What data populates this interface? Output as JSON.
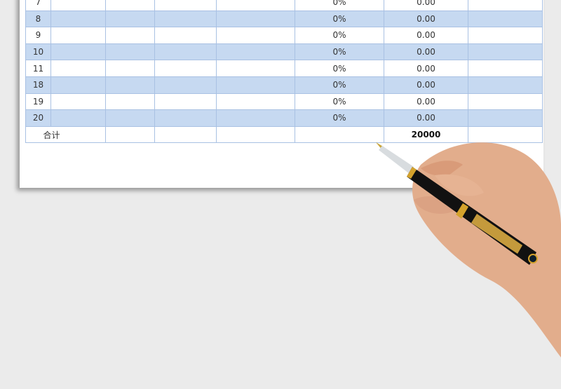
{
  "table": {
    "rows": [
      {
        "no": "7",
        "rate": "0%",
        "amount": "0.00"
      },
      {
        "no": "8",
        "rate": "0%",
        "amount": "0.00"
      },
      {
        "no": "9",
        "rate": "0%",
        "amount": "0.00"
      },
      {
        "no": "10",
        "rate": "0%",
        "amount": "0.00"
      },
      {
        "no": "11",
        "rate": "0%",
        "amount": "0.00"
      },
      {
        "no": "18",
        "rate": "0%",
        "amount": "0.00"
      },
      {
        "no": "19",
        "rate": "0%",
        "amount": "0.00"
      },
      {
        "no": "20",
        "rate": "0%",
        "amount": "0.00"
      }
    ],
    "total_label": "合计",
    "total_amount": "20000"
  },
  "colors": {
    "stripe": "#c6d9f1",
    "border": "#a9c1e3",
    "background": "#ebebeb"
  }
}
